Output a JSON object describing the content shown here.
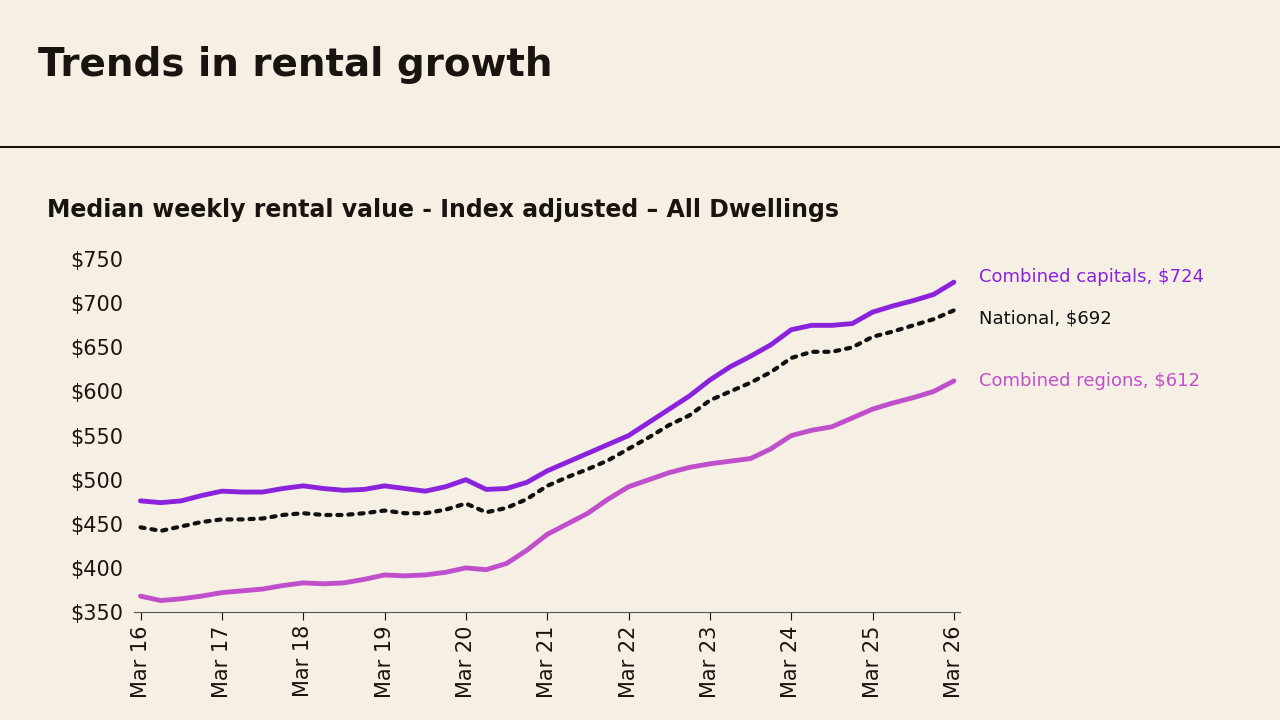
{
  "chart_data": {
    "type": "line",
    "title": "Trends in rental growth",
    "subtitle": "Median weekly rental value - Index adjusted – All Dwellings",
    "categories": [
      "Mar 16",
      null,
      null,
      null,
      "Mar 17",
      null,
      null,
      null,
      "Mar 18",
      null,
      null,
      null,
      "Mar 19",
      null,
      null,
      null,
      "Mar 20",
      null,
      null,
      null,
      "Mar 21",
      null,
      null,
      null,
      "Mar 22",
      null,
      null,
      null,
      "Mar 23",
      null,
      null,
      null,
      "Mar 24",
      null,
      null,
      null,
      "Mar 25",
      null,
      null,
      null,
      "Mar 26"
    ],
    "series": [
      {
        "name": "Combined capitals, $724",
        "color": "#8b22dc",
        "line_style": "solid",
        "values": [
          476,
          474,
          476,
          482,
          487,
          486,
          486,
          490,
          493,
          490,
          488,
          489,
          493,
          490,
          487,
          492,
          500,
          489,
          490,
          497,
          510,
          520,
          530,
          540,
          550,
          565,
          580,
          595,
          613,
          628,
          640,
          653,
          670,
          675,
          675,
          677,
          690,
          697,
          703,
          710,
          724
        ]
      },
      {
        "name": "National, $692",
        "color": "#111111",
        "line_style": "dotted",
        "values": [
          446,
          442,
          447,
          452,
          455,
          455,
          456,
          460,
          462,
          460,
          460,
          462,
          465,
          462,
          462,
          466,
          473,
          463,
          468,
          478,
          493,
          503,
          512,
          522,
          535,
          548,
          562,
          573,
          590,
          600,
          610,
          622,
          638,
          645,
          645,
          650,
          662,
          668,
          675,
          682,
          692
        ]
      },
      {
        "name": "Combined regions, $612",
        "color": "#c04fcc",
        "line_style": "solid",
        "values": [
          368,
          363,
          365,
          368,
          372,
          374,
          376,
          380,
          383,
          382,
          383,
          387,
          392,
          391,
          392,
          395,
          400,
          398,
          405,
          420,
          438,
          450,
          462,
          478,
          492,
          500,
          508,
          514,
          518,
          521,
          524,
          535,
          550,
          556,
          560,
          570,
          580,
          587,
          593,
          600,
          612
        ]
      }
    ],
    "ylim": [
      350,
      750
    ],
    "yticks": [
      {
        "value": 350,
        "label": "$350"
      },
      {
        "value": 400,
        "label": "$400"
      },
      {
        "value": 450,
        "label": "$450"
      },
      {
        "value": 500,
        "label": "$500"
      },
      {
        "value": 550,
        "label": "$550"
      },
      {
        "value": 600,
        "label": "$600"
      },
      {
        "value": 650,
        "label": "$650"
      },
      {
        "value": 700,
        "label": "$700"
      },
      {
        "value": 750,
        "label": "$750"
      }
    ],
    "grid": false
  }
}
